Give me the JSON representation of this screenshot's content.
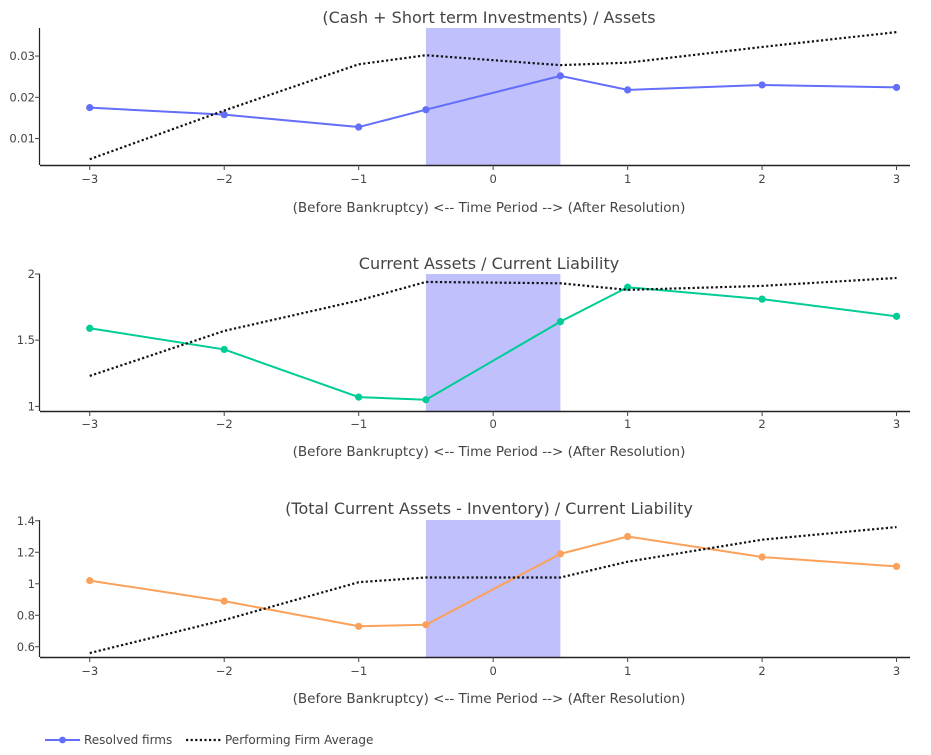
{
  "chart_data": [
    {
      "type": "line",
      "title": "(Cash + Short term Investments) / Assets",
      "xlabel": "(Before Bankruptcy) <-- Time Period --> (After Resolution)",
      "ylabel": "",
      "x": [
        -3,
        -2,
        -1,
        0,
        1,
        2,
        3
      ],
      "x_ticks": [
        "−3",
        "−2",
        "−1",
        "0",
        "1",
        "2",
        "3"
      ],
      "y_ticks": [
        0.01,
        0.02,
        0.03
      ],
      "y_tick_labels": [
        "0.01",
        "0.02",
        "0.03"
      ],
      "xlim": [
        -3.37,
        3.1
      ],
      "ylim": [
        0.0036,
        0.0368
      ],
      "shaded_region": {
        "x0": -0.5,
        "x1": 0.5,
        "color": "#8b8cf9"
      },
      "series": [
        {
          "name": "Resolved firms",
          "color": "#636efa",
          "style": "solid-markers",
          "x": [
            -3,
            -2,
            -1,
            -0.5,
            0.5,
            1,
            2,
            3
          ],
          "values": [
            0.0175,
            0.0158,
            0.0128,
            0.017,
            0.0252,
            0.0218,
            0.023,
            0.0224
          ]
        },
        {
          "name": "Performing Firm Average",
          "color": "#111111",
          "style": "dotted",
          "x": [
            -3,
            -2,
            -1,
            -0.5,
            0.5,
            1,
            2,
            3
          ],
          "values": [
            0.005,
            0.0168,
            0.028,
            0.0302,
            0.0278,
            0.0284,
            0.0322,
            0.0358
          ]
        }
      ]
    },
    {
      "type": "line",
      "title": "Current Assets / Current Liability",
      "xlabel": "(Before Bankruptcy) <-- Time Period --> (After Resolution)",
      "ylabel": "",
      "x": [
        -3,
        -2,
        -1,
        0,
        1,
        2,
        3
      ],
      "x_ticks": [
        "−3",
        "−2",
        "−1",
        "0",
        "1",
        "2",
        "3"
      ],
      "y_ticks": [
        1,
        1.5,
        2
      ],
      "y_tick_labels": [
        "1",
        "1.5",
        "2"
      ],
      "xlim": [
        -3.37,
        3.1
      ],
      "ylim": [
        0.965,
        2.0
      ],
      "shaded_region": {
        "x0": -0.5,
        "x1": 0.5,
        "color": "#8b8cf9"
      },
      "series": [
        {
          "name": "Resolved firms",
          "color": "#00cc96",
          "style": "solid-markers",
          "x": [
            -3,
            -2,
            -1,
            -0.5,
            0.5,
            1,
            2,
            3
          ],
          "values": [
            1.59,
            1.43,
            1.07,
            1.05,
            1.64,
            1.9,
            1.81,
            1.68
          ]
        },
        {
          "name": "Performing Firm Average",
          "color": "#111111",
          "style": "dotted",
          "x": [
            -3,
            -2,
            -1,
            -0.5,
            0.5,
            1,
            2,
            3
          ],
          "values": [
            1.23,
            1.57,
            1.8,
            1.94,
            1.93,
            1.88,
            1.91,
            1.97
          ]
        }
      ]
    },
    {
      "type": "line",
      "title": "(Total Current Assets - Inventory) / Current Liability",
      "xlabel": "(Before Bankruptcy) <-- Time Period --> (After Resolution)",
      "ylabel": "",
      "x": [
        -3,
        -2,
        -1,
        0,
        1,
        2,
        3
      ],
      "x_ticks": [
        "−3",
        "−2",
        "−1",
        "0",
        "1",
        "2",
        "3"
      ],
      "y_ticks": [
        0.6,
        0.8,
        1,
        1.2,
        1.4
      ],
      "y_tick_labels": [
        "0.6",
        "0.8",
        "1",
        "1.2",
        "1.4"
      ],
      "xlim": [
        -3.37,
        3.1
      ],
      "ylim": [
        0.535,
        1.405
      ],
      "shaded_region": {
        "x0": -0.5,
        "x1": 0.5,
        "color": "#8b8cf9"
      },
      "series": [
        {
          "name": "Resolved firms",
          "color": "#fca15a",
          "style": "solid-markers",
          "x": [
            -3,
            -2,
            -1,
            -0.5,
            0.5,
            1,
            2,
            3
          ],
          "values": [
            1.02,
            0.89,
            0.73,
            0.74,
            1.19,
            1.3,
            1.17,
            1.11
          ]
        },
        {
          "name": "Performing Firm Average",
          "color": "#111111",
          "style": "dotted",
          "x": [
            -3,
            -2,
            -1,
            -0.5,
            0.5,
            1,
            2,
            3
          ],
          "values": [
            0.56,
            0.77,
            1.01,
            1.04,
            1.04,
            1.14,
            1.28,
            1.36
          ]
        }
      ]
    }
  ],
  "legend": {
    "placement": "bottom-left",
    "items": [
      {
        "label": "Resolved firms",
        "color": "#636efa",
        "style": "solid-markers"
      },
      {
        "label": "Performing Firm Average",
        "color": "#111111",
        "style": "dotted"
      }
    ]
  }
}
